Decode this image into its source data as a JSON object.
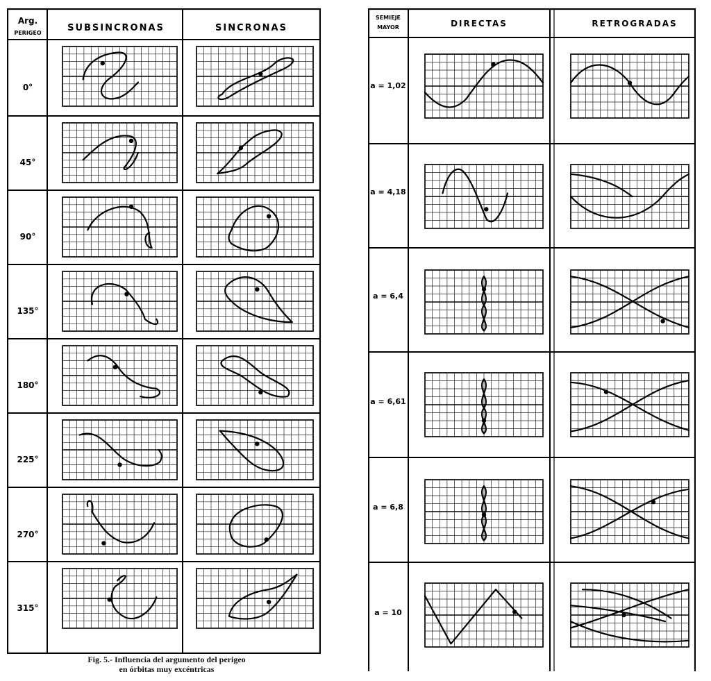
{
  "left_table": {
    "corner_top": "Arg.",
    "corner_bottom": "PERIGEO",
    "columns": [
      "SUBSINCRONAS",
      "SINCRONAS"
    ],
    "rows": [
      "0°",
      "45°",
      "90°",
      "135°",
      "180°",
      "225°",
      "270°",
      "315°"
    ]
  },
  "right_table": {
    "corner_top": "SEMIEJE",
    "corner_bottom": "MAYOR",
    "columns": [
      "DIRECTAS",
      "RETROGRADAS"
    ],
    "rows": [
      "a = 1,02",
      "a = 4,18",
      "a = 6,4",
      "a = 6,61",
      "a = 6,8",
      "a = 10"
    ]
  },
  "caption": {
    "line1": "Fig. 5.- Influencia del argumento del perigeo",
    "line2": "en órbitas muy excéntricas"
  }
}
